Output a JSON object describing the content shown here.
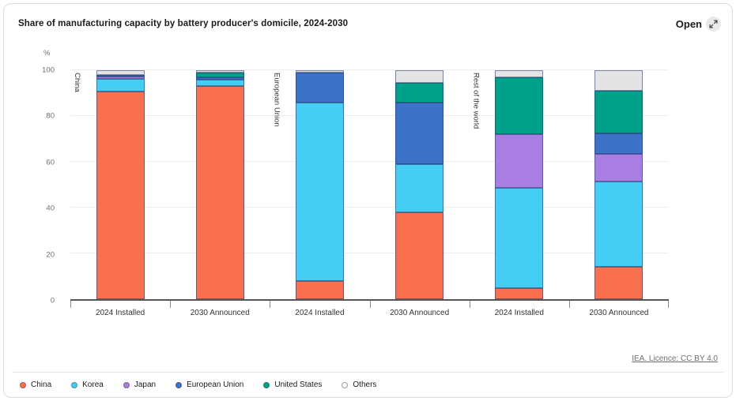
{
  "header": {
    "title": "Share of manufacturing capacity by battery producer's domicile, 2024-2030",
    "open_label": "Open"
  },
  "footer": {
    "source": "IEA. Licence: CC BY 4.0"
  },
  "chart_data": {
    "type": "bar",
    "stacked": true,
    "title": "Share of manufacturing capacity by battery producer's domicile, 2024-2030",
    "unit": "%",
    "ylim": [
      0,
      100
    ],
    "yticks": [
      0,
      20,
      40,
      60,
      80,
      100
    ],
    "grid": true,
    "legend_position": "bottom-left",
    "group_labels": [
      "China",
      "European Union",
      "Rest of the world"
    ],
    "bars": [
      {
        "group": "China",
        "label": "2024 Installed"
      },
      {
        "group": "China",
        "label": "2030 Announced"
      },
      {
        "group": "European Union",
        "label": "2024 Installed"
      },
      {
        "group": "European Union",
        "label": "2030 Announced"
      },
      {
        "group": "Rest of the world",
        "label": "2024 Installed"
      },
      {
        "group": "Rest of the world",
        "label": "2030 Announced"
      }
    ],
    "series": [
      {
        "name": "China",
        "color": "#f8704e",
        "values": [
          91,
          93,
          8,
          38,
          5,
          14
        ]
      },
      {
        "name": "Korea",
        "color": "#45cdf4",
        "values": [
          5.5,
          3,
          78,
          21,
          43.5,
          37.5
        ]
      },
      {
        "name": "Japan",
        "color": "#a97ee3",
        "values": [
          1,
          0,
          0,
          0,
          23.5,
          12
        ]
      },
      {
        "name": "European Union",
        "color": "#3d72c9",
        "values": [
          0.5,
          1,
          13,
          27,
          0,
          9
        ]
      },
      {
        "name": "United States",
        "color": "#00a18a",
        "values": [
          0,
          2,
          0,
          8.5,
          25,
          18.5
        ]
      },
      {
        "name": "Others",
        "color": "#e4e4e4",
        "values": [
          2,
          1,
          1,
          5.5,
          3,
          9
        ]
      }
    ]
  }
}
